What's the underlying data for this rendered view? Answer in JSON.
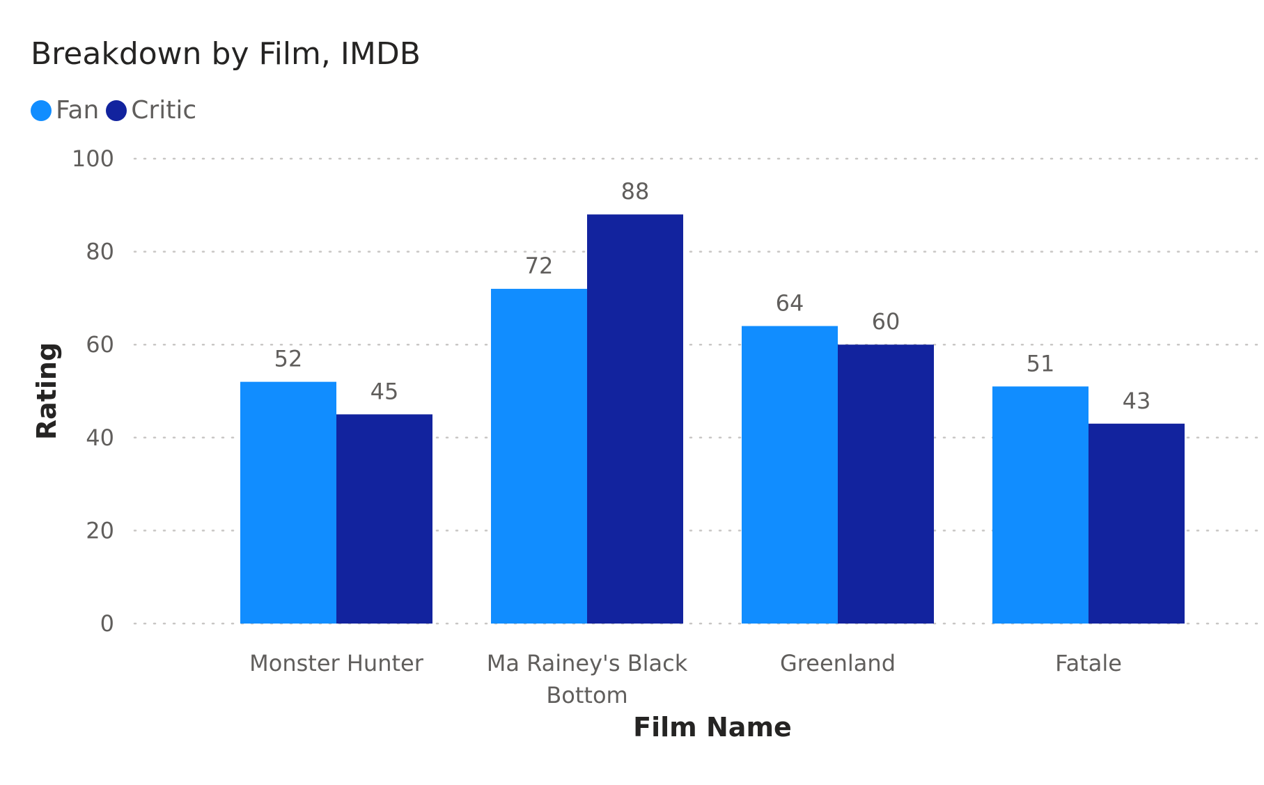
{
  "chart_data": {
    "type": "bar",
    "title": "Breakdown by Film, IMDB",
    "xlabel": "Film Name",
    "ylabel": "Rating",
    "categories": [
      [
        "Monster Hunter"
      ],
      [
        "Ma Rainey's Black",
        "Bottom"
      ],
      [
        "Greenland"
      ],
      [
        "Fatale"
      ]
    ],
    "series": [
      {
        "name": "Fan",
        "color": "#118dff",
        "values": [
          52,
          72,
          64,
          51
        ]
      },
      {
        "name": "Critic",
        "color": "#12239e",
        "values": [
          45,
          88,
          60,
          43
        ]
      }
    ],
    "ylim": [
      0,
      100
    ],
    "yticks": [
      "0",
      "20",
      "40",
      "60",
      "80",
      "100"
    ],
    "grid": "horizontal-dotted",
    "legend_position": "top-left",
    "data_labels": true
  }
}
